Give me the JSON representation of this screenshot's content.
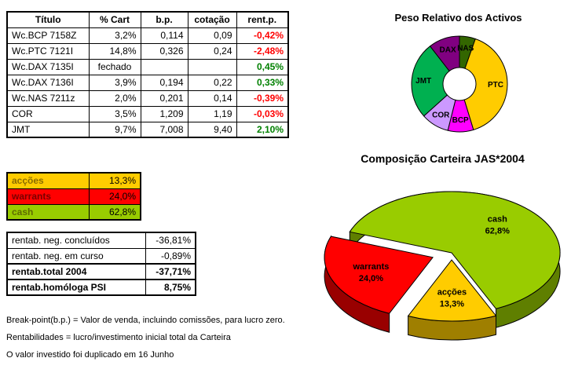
{
  "colors": {
    "negative": "#FF0000",
    "positive": "#008000",
    "border": "#000000",
    "background": "#FFFFFF"
  },
  "positions_table": {
    "headers": [
      "Título",
      "% Cart",
      "b.p.",
      "cotação",
      "rent.p."
    ],
    "rows": [
      {
        "titulo": "Wc.BCP 7158Z",
        "cart": "3,2%",
        "bp": "0,114",
        "cotacao": "0,09",
        "rent": "-0,42%",
        "rent_sign": "neg"
      },
      {
        "titulo": "Wc.PTC 7121I",
        "cart": "14,8%",
        "bp": "0,326",
        "cotacao": "0,24",
        "rent": "-2,48%",
        "rent_sign": "neg"
      },
      {
        "titulo": "Wc.DAX 7135I",
        "cart": "fechado",
        "bp": "",
        "cotacao": "",
        "rent": "0,45%",
        "rent_sign": "pos"
      },
      {
        "titulo": "Wc.DAX 7136I",
        "cart": "3,9%",
        "bp": "0,194",
        "cotacao": "0,22",
        "rent": "0,33%",
        "rent_sign": "pos"
      },
      {
        "titulo": "Wc.NAS 7211z",
        "cart": "2,0%",
        "bp": "0,201",
        "cotacao": "0,14",
        "rent": "-0,39%",
        "rent_sign": "neg"
      },
      {
        "titulo": "COR",
        "cart": "3,5%",
        "bp": "1,209",
        "cotacao": "1,19",
        "rent": "-0,03%",
        "rent_sign": "neg"
      },
      {
        "titulo": "JMT",
        "cart": "9,7%",
        "bp": "7,008",
        "cotacao": "9,40",
        "rent": "2,10%",
        "rent_sign": "pos"
      }
    ]
  },
  "allocation_table": {
    "rows": [
      {
        "label": "acções",
        "value": "13,3%",
        "bg": "#FFCC00",
        "label_color": "#8a6d00"
      },
      {
        "label": "warrants",
        "value": "24,0%",
        "bg": "#FF0000",
        "label_color": "#7a0000"
      },
      {
        "label": "cash",
        "value": "62,8%",
        "bg": "#99CC00",
        "label_color": "#5e6b00"
      }
    ]
  },
  "summary_table": {
    "rows": [
      {
        "label": "rentab. neg. concluídos",
        "value": "-36,81%",
        "bold": false
      },
      {
        "label": "rentab. neg. em curso",
        "value": "-0,89%",
        "bold": false
      },
      {
        "label": "rentab.total 2004",
        "value": "-37,71%",
        "bold": true
      },
      {
        "label": "rentab.homóloga PSI",
        "value": "8,75%",
        "bold": true
      }
    ]
  },
  "notes": [
    "Break-point(b.p.) = Valor de venda, incluindo comissões, para lucro zero.",
    "Rentabilidades = lucro/investimento inicial total da Carteira",
    "O valor investido foi duplicado em 16 Junho"
  ],
  "chart_data": [
    {
      "type": "pie",
      "variant": "donut",
      "title": "Peso Relativo dos Activos",
      "unit": "% Cart (portfolio weight, normalized)",
      "legend": "off",
      "start_angle_deg_cw_from_top": 0,
      "slices": [
        {
          "label": "NAS",
          "value": 2.0,
          "color": "#336600"
        },
        {
          "label": "PTC",
          "value": 14.8,
          "color": "#FFCC00"
        },
        {
          "label": "BCP",
          "value": 3.2,
          "color": "#FF00FF"
        },
        {
          "label": "COR",
          "value": 3.5,
          "color": "#CC99FF"
        },
        {
          "label": "JMT",
          "value": 9.7,
          "color": "#00B050"
        },
        {
          "label": "DAX",
          "value": 3.9,
          "color": "#800080"
        }
      ]
    },
    {
      "type": "pie",
      "variant": "3d-exploded",
      "title": "Composição Carteira JAS*2004",
      "legend": "off",
      "start_angle_deg_cw_from_top": 290,
      "slices": [
        {
          "label": "cash",
          "value": 62.8,
          "pct_label": "62,8%",
          "color": "#99CC00",
          "side_color": "#5F7F00",
          "explode": 0
        },
        {
          "label": "acções",
          "value": 13.3,
          "pct_label": "13,3%",
          "color": "#FFCC00",
          "side_color": "#9F7F00",
          "explode": 16
        },
        {
          "label": "warrants",
          "value": 24.0,
          "pct_label": "24,0%",
          "color": "#FF0000",
          "side_color": "#990000",
          "explode": 26
        }
      ]
    }
  ]
}
